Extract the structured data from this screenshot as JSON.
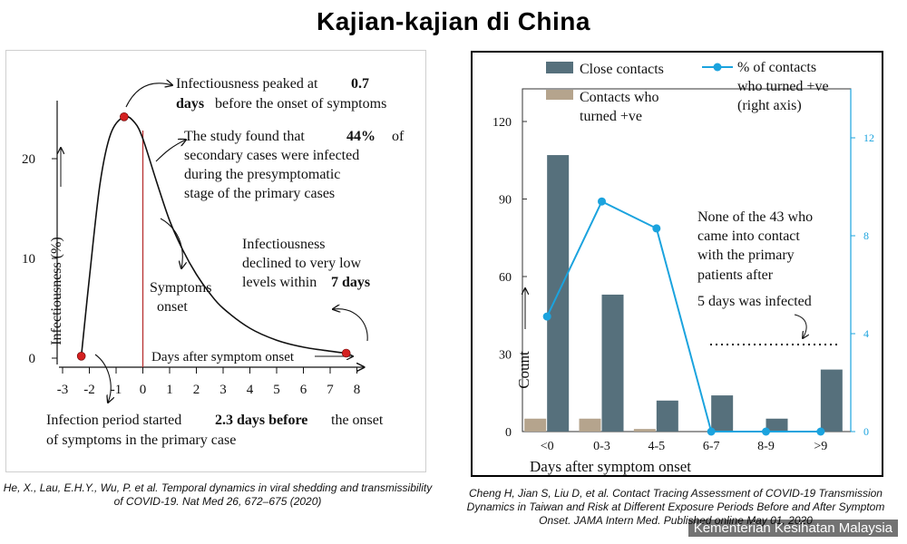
{
  "page_title": "Kajian-kajian di China",
  "watermark": "Kementerian Kesihatan Malaysia",
  "citations": {
    "left": "He, X., Lau, E.H.Y., Wu, P. et al. Temporal dynamics in viral shedding and transmissibility of COVID-19. Nat Med 26, 672–675 (2020)",
    "right": "Cheng H, Jian S, Liu D, et al. Contact Tracing Assessment of COVID-19 Transmission Dynamics in Taiwan and Risk at Different Exposure Periods Before and After Symptom Onset. JAMA Intern Med. Published online May 01, 2020"
  },
  "chart_data": [
    {
      "type": "line",
      "title": "",
      "xlabel": "Days after symptom onset",
      "ylabel": "Infectiousness (%)",
      "xlim": [
        -3,
        8
      ],
      "ylim": [
        0,
        25
      ],
      "x_ticks": [
        "-3",
        "-2",
        "-1",
        "0",
        "1",
        "2",
        "3",
        "4",
        "5",
        "6",
        "7",
        "8"
      ],
      "y_ticks": [
        "0",
        "10",
        "20"
      ],
      "grid": false,
      "line_color": "#111111",
      "marker_color": "#d42020",
      "onset_line_color": "#b83030",
      "series": [
        {
          "x": [
            -2.3,
            -2.0,
            -1.6,
            -1.2,
            -0.7,
            -0.3,
            0,
            0.5,
            1,
            1.5,
            2,
            2.5,
            3,
            4,
            5,
            6,
            7,
            7.6
          ],
          "y": [
            0.2,
            8.0,
            17.5,
            22.5,
            24.2,
            23.6,
            22.0,
            17.8,
            13.8,
            10.8,
            8.4,
            6.5,
            5.0,
            3.0,
            1.8,
            1.1,
            0.7,
            0.5
          ]
        }
      ],
      "marked_points": [
        {
          "x": -2.3,
          "y": 0.2
        },
        {
          "x": -0.7,
          "y": 24.2
        },
        {
          "x": 7.6,
          "y": 0.5
        }
      ],
      "annotations": {
        "peak": [
          "Infectiousness peaked at",
          "0.7",
          "days",
          "before the onset of symptoms"
        ],
        "presymptomatic": [
          "The study found that",
          "44%",
          "of",
          "secondary cases were infected",
          "during the presymptomatic",
          "stage of the primary cases"
        ],
        "onset": [
          "Symptoms",
          "onset"
        ],
        "decline": [
          "Infectiousness",
          "declined to very low",
          "levels within",
          "7 days"
        ],
        "start": [
          "Infection period started",
          "2.3 days before",
          "the onset",
          "of symptoms in the primary case"
        ]
      }
    },
    {
      "type": "bar",
      "title": "",
      "xlabel": "Days after symptom onset",
      "ylabel": "Count",
      "ylim": [
        0,
        120
      ],
      "y_ticks": [
        "0",
        "30",
        "60",
        "90",
        "120"
      ],
      "y2lim": [
        0,
        12.8
      ],
      "y2_ticks": [
        "0",
        "4",
        "8",
        "12"
      ],
      "categories": [
        "<0",
        "0-3",
        "4-5",
        "6-7",
        "8-9",
        ">9"
      ],
      "grid": false,
      "legend_position": "top",
      "series": [
        {
          "name": "Close contacts",
          "color": "#56707c",
          "values": [
            107,
            53,
            12,
            14,
            5,
            24
          ]
        },
        {
          "name": "Contacts who turned +ve",
          "color": "#b5a48d",
          "values": [
            5,
            5,
            1,
            0,
            0,
            0
          ]
        },
        {
          "name": "% of contacts who turned +ve (right axis)",
          "color": "#1ba3de",
          "axis": "right",
          "values": [
            4.7,
            9.4,
            8.3,
            0,
            0,
            0
          ]
        }
      ],
      "annotation": [
        "None of the 43 who",
        "came into contact",
        "with the primary",
        "patients after",
        "5 days was infected"
      ]
    }
  ]
}
